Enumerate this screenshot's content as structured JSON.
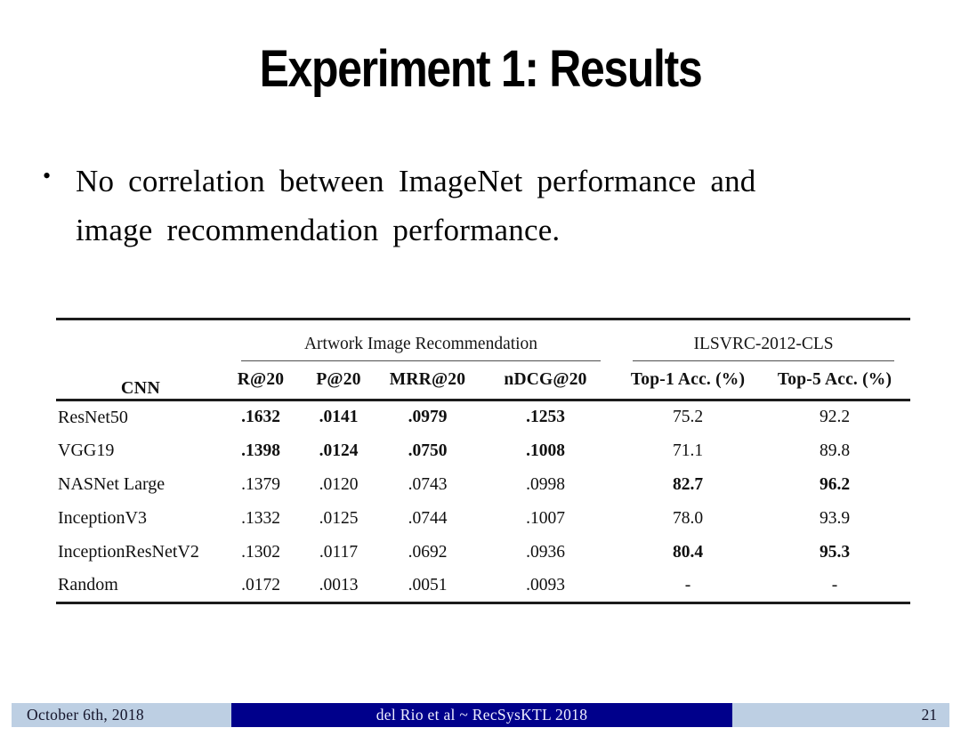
{
  "slide": {
    "title": "Experiment 1: Results",
    "bullet_lines": [
      "No correlation between ImageNet performance and",
      "image recommendation performance."
    ]
  },
  "table": {
    "col_label": "CNN",
    "groups": [
      {
        "label": "Artwork Image Recommendation",
        "span": 4
      },
      {
        "label": "ILSVRC-2012-CLS",
        "span": 2
      }
    ],
    "columns": [
      "R@20",
      "P@20",
      "MRR@20",
      "nDCG@20",
      "Top-1 Acc. (%)",
      "Top-5 Acc. (%)"
    ],
    "rows": [
      {
        "name": "ResNet50",
        "cells": [
          {
            "v": ".1632",
            "b": true
          },
          {
            "v": ".0141",
            "b": true
          },
          {
            "v": ".0979",
            "b": true
          },
          {
            "v": ".1253",
            "b": true
          },
          {
            "v": "75.2",
            "b": false
          },
          {
            "v": "92.2",
            "b": false
          }
        ]
      },
      {
        "name": "VGG19",
        "cells": [
          {
            "v": ".1398",
            "b": true
          },
          {
            "v": ".0124",
            "b": true
          },
          {
            "v": ".0750",
            "b": true
          },
          {
            "v": ".1008",
            "b": true
          },
          {
            "v": "71.1",
            "b": false
          },
          {
            "v": "89.8",
            "b": false
          }
        ]
      },
      {
        "name": "NASNet Large",
        "cells": [
          {
            "v": ".1379",
            "b": false
          },
          {
            "v": ".0120",
            "b": false
          },
          {
            "v": ".0743",
            "b": false
          },
          {
            "v": ".0998",
            "b": false
          },
          {
            "v": "82.7",
            "b": true
          },
          {
            "v": "96.2",
            "b": true
          }
        ]
      },
      {
        "name": "InceptionV3",
        "cells": [
          {
            "v": ".1332",
            "b": false
          },
          {
            "v": ".0125",
            "b": false
          },
          {
            "v": ".0744",
            "b": false
          },
          {
            "v": ".1007",
            "b": false
          },
          {
            "v": "78.0",
            "b": false
          },
          {
            "v": "93.9",
            "b": false
          }
        ]
      },
      {
        "name": "InceptionResNetV2",
        "cells": [
          {
            "v": ".1302",
            "b": false
          },
          {
            "v": ".0117",
            "b": false
          },
          {
            "v": ".0692",
            "b": false
          },
          {
            "v": ".0936",
            "b": false
          },
          {
            "v": "80.4",
            "b": true
          },
          {
            "v": "95.3",
            "b": true
          }
        ]
      },
      {
        "name": "Random",
        "cells": [
          {
            "v": ".0172",
            "b": false
          },
          {
            "v": ".0013",
            "b": false
          },
          {
            "v": ".0051",
            "b": false
          },
          {
            "v": ".0093",
            "b": false
          },
          {
            "v": "-",
            "b": false
          },
          {
            "v": "-",
            "b": false
          }
        ]
      }
    ]
  },
  "footer": {
    "date": "October 6th, 2018",
    "center": "del Rio et al ~ RecSysKTL 2018",
    "page": "21"
  },
  "colors": {
    "footer_bar": "#bdcfe3",
    "footer_banner": "#00008b",
    "table_rule": "#1c1c1c",
    "cmid_rule": "#4f4f4f"
  }
}
